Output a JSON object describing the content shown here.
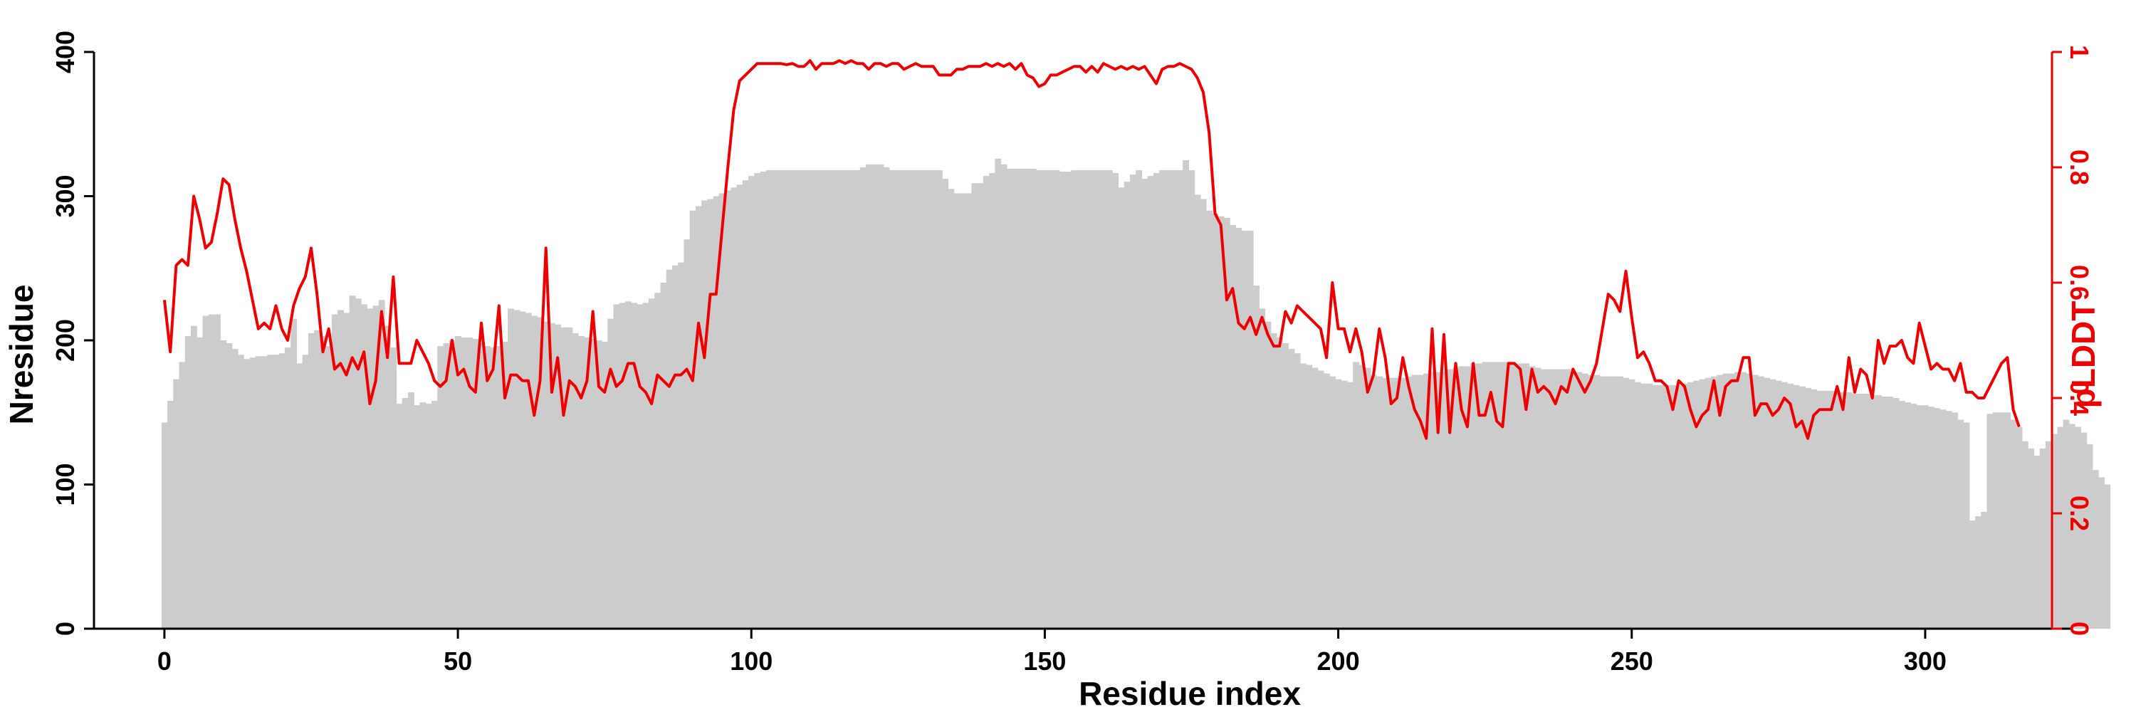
{
  "chart_data": {
    "type": "bar+line",
    "xlabel": "Residue index",
    "ylabel_left": "Nresidue",
    "ylabel_right": "pLDDT",
    "xlim": [
      -12,
      325
    ],
    "ylim_left": [
      0,
      400
    ],
    "ylim_right": [
      0,
      1
    ],
    "x_ticks": [
      0,
      50,
      100,
      150,
      200,
      250,
      300
    ],
    "y_left_ticks": [
      0,
      100,
      200,
      300,
      400
    ],
    "y_right_ticks": [
      0,
      0.2,
      0.4,
      0.6,
      0.8,
      1
    ],
    "grid": false,
    "colors": {
      "bars": "#cccccc",
      "line": "#ee0000",
      "axis_left": "#000000",
      "axis_right": "#ee0000"
    },
    "series": [
      {
        "kind": "bar",
        "axis": "left",
        "x_start": 0,
        "values": [
          143,
          158,
          173,
          185,
          203,
          210,
          202,
          217,
          218,
          218,
          200,
          198,
          194,
          190,
          187,
          188,
          189,
          189,
          190,
          190,
          191,
          195,
          215,
          184,
          190,
          205,
          207,
          203,
          196,
          218,
          221,
          219,
          231,
          229,
          225,
          222,
          224,
          228,
          210,
          195,
          156,
          160,
          164,
          155,
          157,
          156,
          158,
          196,
          198,
          200,
          203,
          202,
          202,
          201,
          198,
          196,
          195,
          196,
          199,
          222,
          221,
          220,
          219,
          217,
          216,
          213,
          212,
          211,
          209,
          209,
          205,
          203,
          202,
          201,
          200,
          199,
          215,
          225,
          226,
          227,
          226,
          225,
          226,
          229,
          233,
          240,
          249,
          252,
          254,
          270,
          290,
          293,
          297,
          298,
          300,
          302,
          304,
          306,
          308,
          311,
          314,
          316,
          317,
          318,
          318,
          318,
          318,
          318,
          318,
          318,
          318,
          318,
          318,
          318,
          318,
          318,
          318,
          318,
          318,
          320,
          322,
          322,
          322,
          320,
          318,
          318,
          318,
          318,
          318,
          318,
          318,
          318,
          318,
          312,
          305,
          302,
          302,
          302,
          309,
          309,
          314,
          316,
          326,
          322,
          319,
          319,
          319,
          319,
          319,
          318,
          318,
          318,
          318,
          317,
          317,
          318,
          318,
          318,
          318,
          318,
          318,
          318,
          316,
          306,
          310,
          315,
          318,
          312,
          314,
          316,
          318,
          318,
          318,
          318,
          325,
          318,
          301,
          298,
          290,
          288,
          286,
          285,
          280,
          278,
          276,
          276,
          238,
          222,
          213,
          205,
          202,
          198,
          194,
          191,
          184,
          183,
          181,
          179,
          177,
          175,
          173,
          172,
          171,
          185,
          183,
          181,
          176,
          175,
          174,
          174,
          174,
          174,
          175,
          176,
          176,
          177,
          178,
          178,
          178,
          180,
          181,
          182,
          182,
          184,
          184,
          185,
          185,
          185,
          185,
          185,
          184,
          184,
          184,
          182,
          181,
          180,
          180,
          180,
          180,
          180,
          178,
          178,
          177,
          176,
          176,
          175,
          175,
          175,
          175,
          174,
          173,
          171,
          170,
          170,
          169,
          169,
          169,
          169,
          169,
          170,
          171,
          172,
          173,
          174,
          175,
          176,
          177,
          177,
          178,
          178,
          177,
          176,
          175,
          174,
          173,
          172,
          171,
          170,
          169,
          168,
          167,
          166,
          165,
          165,
          165,
          164,
          164,
          164,
          163,
          163,
          163,
          162,
          162,
          161,
          161,
          160,
          158,
          157,
          156,
          155,
          155,
          154,
          153,
          152,
          151,
          150,
          145,
          143,
          75,
          78,
          81,
          149,
          150,
          150,
          150,
          145,
          140,
          130,
          125,
          120,
          125,
          130,
          135,
          140,
          145,
          142,
          140,
          136,
          128,
          110,
          105,
          100
        ]
      },
      {
        "kind": "line",
        "axis": "right",
        "x_start": 0,
        "values": [
          0.57,
          0.48,
          0.63,
          0.64,
          0.63,
          0.75,
          0.71,
          0.66,
          0.67,
          0.72,
          0.78,
          0.77,
          0.71,
          0.66,
          0.62,
          0.57,
          0.52,
          0.53,
          0.52,
          0.56,
          0.52,
          0.5,
          0.56,
          0.59,
          0.61,
          0.66,
          0.58,
          0.48,
          0.52,
          0.45,
          0.46,
          0.44,
          0.47,
          0.45,
          0.48,
          0.39,
          0.43,
          0.55,
          0.47,
          0.61,
          0.46,
          0.46,
          0.46,
          0.5,
          0.48,
          0.46,
          0.43,
          0.42,
          0.43,
          0.5,
          0.44,
          0.45,
          0.42,
          0.41,
          0.53,
          0.43,
          0.45,
          0.56,
          0.4,
          0.44,
          0.44,
          0.43,
          0.43,
          0.37,
          0.43,
          0.66,
          0.41,
          0.47,
          0.37,
          0.43,
          0.42,
          0.4,
          0.43,
          0.55,
          0.42,
          0.41,
          0.45,
          0.42,
          0.43,
          0.46,
          0.46,
          0.42,
          0.41,
          0.39,
          0.44,
          0.43,
          0.42,
          0.44,
          0.44,
          0.45,
          0.43,
          0.53,
          0.47,
          0.58,
          0.58,
          0.69,
          0.8,
          0.9,
          0.95,
          0.96,
          0.97,
          0.98,
          0.98,
          0.98,
          0.98,
          0.98,
          0.978,
          0.98,
          0.975,
          0.975,
          0.985,
          0.97,
          0.98,
          0.98,
          0.98,
          0.985,
          0.98,
          0.985,
          0.98,
          0.98,
          0.97,
          0.98,
          0.98,
          0.975,
          0.98,
          0.98,
          0.97,
          0.975,
          0.98,
          0.975,
          0.975,
          0.975,
          0.96,
          0.96,
          0.96,
          0.97,
          0.97,
          0.975,
          0.975,
          0.975,
          0.98,
          0.975,
          0.98,
          0.975,
          0.98,
          0.97,
          0.98,
          0.96,
          0.955,
          0.94,
          0.945,
          0.96,
          0.96,
          0.965,
          0.97,
          0.975,
          0.975,
          0.965,
          0.975,
          0.965,
          0.98,
          0.975,
          0.97,
          0.975,
          0.97,
          0.975,
          0.97,
          0.975,
          0.96,
          0.945,
          0.97,
          0.975,
          0.975,
          0.98,
          0.975,
          0.97,
          0.955,
          0.93,
          0.86,
          0.72,
          0.7,
          0.57,
          0.59,
          0.53,
          0.52,
          0.54,
          0.51,
          0.54,
          0.51,
          0.49,
          0.49,
          0.55,
          0.53,
          0.56,
          0.55,
          0.54,
          0.53,
          0.52,
          0.47,
          0.6,
          0.52,
          0.52,
          0.48,
          0.52,
          0.48,
          0.41,
          0.44,
          0.52,
          0.47,
          0.39,
          0.4,
          0.47,
          0.42,
          0.38,
          0.36,
          0.33,
          0.52,
          0.34,
          0.51,
          0.34,
          0.46,
          0.38,
          0.35,
          0.46,
          0.37,
          0.37,
          0.41,
          0.36,
          0.35,
          0.46,
          0.46,
          0.45,
          0.38,
          0.45,
          0.41,
          0.42,
          0.41,
          0.39,
          0.42,
          0.41,
          0.45,
          0.43,
          0.41,
          0.43,
          0.46,
          0.52,
          0.58,
          0.57,
          0.55,
          0.62,
          0.54,
          0.47,
          0.48,
          0.46,
          0.43,
          0.43,
          0.42,
          0.38,
          0.43,
          0.42,
          0.38,
          0.35,
          0.37,
          0.38,
          0.43,
          0.37,
          0.42,
          0.43,
          0.43,
          0.47,
          0.47,
          0.37,
          0.39,
          0.39,
          0.37,
          0.38,
          0.4,
          0.39,
          0.35,
          0.36,
          0.33,
          0.37,
          0.38,
          0.38,
          0.38,
          0.42,
          0.38,
          0.47,
          0.41,
          0.45,
          0.44,
          0.4,
          0.5,
          0.46,
          0.49,
          0.49,
          0.5,
          0.47,
          0.46,
          0.53,
          0.49,
          0.45,
          0.46,
          0.45,
          0.45,
          0.43,
          0.46,
          0.41,
          0.41,
          0.4,
          0.4,
          0.42,
          0.44,
          0.46,
          0.47,
          0.38,
          0.35
        ]
      }
    ]
  }
}
